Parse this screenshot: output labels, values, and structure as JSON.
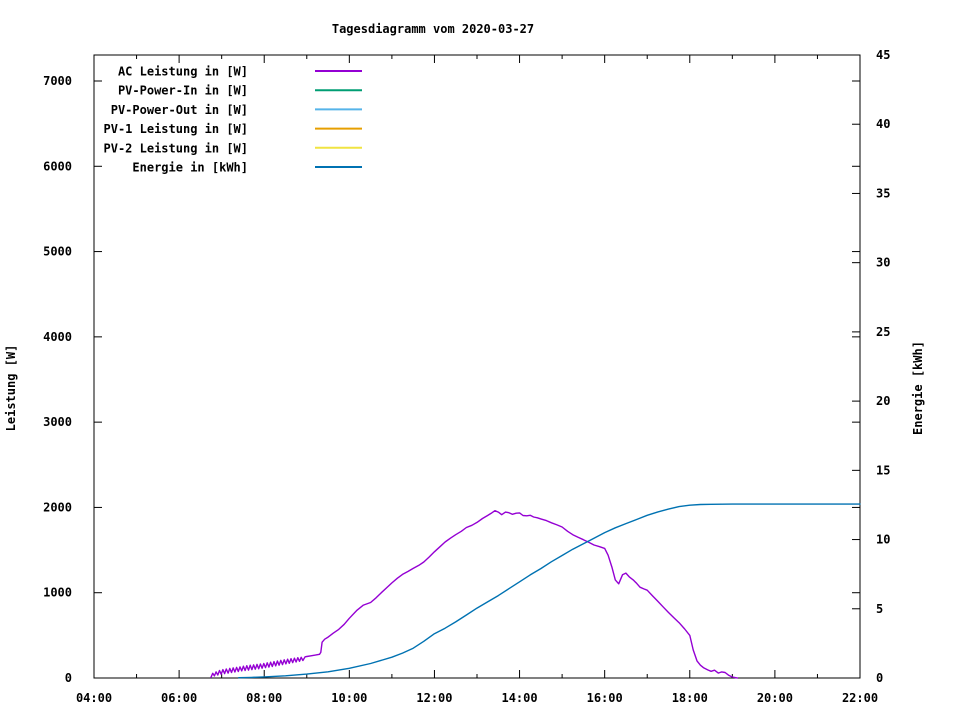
{
  "chart_data": {
    "type": "line",
    "title": "Tagesdiagramm vom 2020-03-27",
    "grid": false,
    "legend_position": "top-left-inside",
    "x_axis": {
      "range_hours": [
        4,
        22
      ],
      "major_tick_hours": [
        4,
        6,
        8,
        10,
        12,
        14,
        16,
        18,
        20,
        22
      ],
      "major_tick_labels": [
        "04:00",
        "06:00",
        "08:00",
        "10:00",
        "12:00",
        "14:00",
        "16:00",
        "18:00",
        "20:00",
        "22:00"
      ],
      "minor_tick_hours": [
        5,
        7,
        9,
        11,
        13,
        15,
        17,
        19,
        21
      ]
    },
    "y_left": {
      "label": "Leistung [W]",
      "range": [
        0,
        7300
      ],
      "tick_values": [
        0,
        1000,
        2000,
        3000,
        4000,
        5000,
        6000,
        7000
      ],
      "tick_labels": [
        "0",
        "1000",
        "2000",
        "3000",
        "4000",
        "5000",
        "6000",
        "7000"
      ]
    },
    "y_right": {
      "label": "Energie [kWh]",
      "range": [
        0,
        45
      ],
      "tick_values": [
        0,
        5,
        10,
        15,
        20,
        25,
        30,
        35,
        40,
        45
      ],
      "tick_labels": [
        "0",
        "5",
        "10",
        "15",
        "20",
        "25",
        "30",
        "35",
        "40",
        "45"
      ]
    },
    "series": [
      {
        "name": "AC Leistung in [W]",
        "color": "#9400D3",
        "axis": "left",
        "points": [
          [
            6.75,
            8
          ],
          [
            6.79,
            55
          ],
          [
            6.83,
            25
          ],
          [
            6.87,
            72
          ],
          [
            6.91,
            35
          ],
          [
            6.95,
            88
          ],
          [
            6.99,
            45
          ],
          [
            7.03,
            98
          ],
          [
            7.07,
            52
          ],
          [
            7.11,
            105
          ],
          [
            7.15,
            58
          ],
          [
            7.19,
            112
          ],
          [
            7.23,
            64
          ],
          [
            7.27,
            118
          ],
          [
            7.31,
            70
          ],
          [
            7.35,
            124
          ],
          [
            7.39,
            76
          ],
          [
            7.43,
            130
          ],
          [
            7.47,
            83
          ],
          [
            7.51,
            138
          ],
          [
            7.55,
            88
          ],
          [
            7.59,
            144
          ],
          [
            7.63,
            93
          ],
          [
            7.67,
            150
          ],
          [
            7.71,
            98
          ],
          [
            7.75,
            154
          ],
          [
            7.79,
            103
          ],
          [
            7.83,
            159
          ],
          [
            7.87,
            108
          ],
          [
            7.91,
            164
          ],
          [
            7.95,
            115
          ],
          [
            7.99,
            170
          ],
          [
            8.03,
            122
          ],
          [
            8.07,
            178
          ],
          [
            8.11,
            128
          ],
          [
            8.15,
            185
          ],
          [
            8.19,
            135
          ],
          [
            8.23,
            192
          ],
          [
            8.27,
            142
          ],
          [
            8.31,
            199
          ],
          [
            8.35,
            150
          ],
          [
            8.39,
            206
          ],
          [
            8.43,
            157
          ],
          [
            8.47,
            213
          ],
          [
            8.51,
            165
          ],
          [
            8.55,
            220
          ],
          [
            8.59,
            172
          ],
          [
            8.63,
            226
          ],
          [
            8.67,
            180
          ],
          [
            8.71,
            232
          ],
          [
            8.75,
            188
          ],
          [
            8.79,
            238
          ],
          [
            8.83,
            196
          ],
          [
            8.87,
            243
          ],
          [
            8.91,
            205
          ],
          [
            8.96,
            248
          ],
          [
            9.0,
            252
          ],
          [
            9.1,
            260
          ],
          [
            9.2,
            268
          ],
          [
            9.3,
            278
          ],
          [
            9.33,
            300
          ],
          [
            9.36,
            420
          ],
          [
            9.42,
            455
          ],
          [
            9.5,
            480
          ],
          [
            9.62,
            525
          ],
          [
            9.75,
            570
          ],
          [
            9.88,
            630
          ],
          [
            10.0,
            700
          ],
          [
            10.17,
            790
          ],
          [
            10.33,
            855
          ],
          [
            10.5,
            885
          ],
          [
            10.63,
            940
          ],
          [
            10.75,
            1000
          ],
          [
            10.88,
            1060
          ],
          [
            11.0,
            1115
          ],
          [
            11.13,
            1170
          ],
          [
            11.25,
            1215
          ],
          [
            11.38,
            1250
          ],
          [
            11.5,
            1285
          ],
          [
            11.63,
            1320
          ],
          [
            11.75,
            1360
          ],
          [
            11.88,
            1420
          ],
          [
            12.0,
            1480
          ],
          [
            12.13,
            1540
          ],
          [
            12.25,
            1595
          ],
          [
            12.38,
            1640
          ],
          [
            12.5,
            1680
          ],
          [
            12.63,
            1720
          ],
          [
            12.75,
            1765
          ],
          [
            12.88,
            1790
          ],
          [
            13.0,
            1825
          ],
          [
            13.13,
            1870
          ],
          [
            13.25,
            1905
          ],
          [
            13.33,
            1930
          ],
          [
            13.42,
            1962
          ],
          [
            13.5,
            1945
          ],
          [
            13.58,
            1915
          ],
          [
            13.67,
            1945
          ],
          [
            13.75,
            1938
          ],
          [
            13.83,
            1920
          ],
          [
            13.92,
            1932
          ],
          [
            14.0,
            1936
          ],
          [
            14.08,
            1905
          ],
          [
            14.17,
            1902
          ],
          [
            14.25,
            1908
          ],
          [
            14.33,
            1888
          ],
          [
            14.42,
            1878
          ],
          [
            14.5,
            1866
          ],
          [
            14.63,
            1845
          ],
          [
            14.75,
            1820
          ],
          [
            14.88,
            1795
          ],
          [
            15.0,
            1770
          ],
          [
            15.13,
            1720
          ],
          [
            15.25,
            1680
          ],
          [
            15.38,
            1648
          ],
          [
            15.5,
            1622
          ],
          [
            15.63,
            1590
          ],
          [
            15.75,
            1560
          ],
          [
            15.88,
            1540
          ],
          [
            16.0,
            1520
          ],
          [
            16.08,
            1440
          ],
          [
            16.17,
            1300
          ],
          [
            16.25,
            1150
          ],
          [
            16.33,
            1105
          ],
          [
            16.42,
            1210
          ],
          [
            16.5,
            1230
          ],
          [
            16.58,
            1185
          ],
          [
            16.67,
            1150
          ],
          [
            16.75,
            1110
          ],
          [
            16.83,
            1065
          ],
          [
            16.92,
            1045
          ],
          [
            17.0,
            1030
          ],
          [
            17.13,
            960
          ],
          [
            17.25,
            898
          ],
          [
            17.38,
            830
          ],
          [
            17.5,
            768
          ],
          [
            17.63,
            705
          ],
          [
            17.75,
            648
          ],
          [
            17.88,
            575
          ],
          [
            18.0,
            500
          ],
          [
            18.08,
            330
          ],
          [
            18.17,
            200
          ],
          [
            18.25,
            150
          ],
          [
            18.33,
            118
          ],
          [
            18.42,
            95
          ],
          [
            18.5,
            78
          ],
          [
            18.58,
            92
          ],
          [
            18.67,
            58
          ],
          [
            18.75,
            72
          ],
          [
            18.83,
            65
          ],
          [
            18.92,
            30
          ],
          [
            19.0,
            12
          ],
          [
            19.08,
            3
          ],
          [
            19.12,
            0
          ]
        ]
      },
      {
        "name": "PV-Power-In in [W]",
        "color": "#009E73",
        "axis": "left",
        "points": []
      },
      {
        "name": "PV-Power-Out in [W]",
        "color": "#56B4E9",
        "axis": "left",
        "points": []
      },
      {
        "name": "PV-1 Leistung in [W]",
        "color": "#E69F00",
        "axis": "left",
        "points": []
      },
      {
        "name": "PV-2 Leistung in [W]",
        "color": "#F0E442",
        "axis": "left",
        "points": []
      },
      {
        "name": "Energie in [kWh]",
        "color": "#0072B2",
        "axis": "right",
        "points": [
          [
            7.4,
            0.02
          ],
          [
            7.7,
            0.04
          ],
          [
            8.0,
            0.08
          ],
          [
            8.5,
            0.16
          ],
          [
            9.0,
            0.28
          ],
          [
            9.5,
            0.45
          ],
          [
            10.0,
            0.7
          ],
          [
            10.5,
            1.05
          ],
          [
            11.0,
            1.5
          ],
          [
            11.25,
            1.8
          ],
          [
            11.5,
            2.15
          ],
          [
            11.75,
            2.65
          ],
          [
            12.0,
            3.2
          ],
          [
            12.25,
            3.6
          ],
          [
            12.5,
            4.05
          ],
          [
            12.75,
            4.55
          ],
          [
            13.0,
            5.05
          ],
          [
            13.25,
            5.5
          ],
          [
            13.5,
            5.95
          ],
          [
            13.75,
            6.45
          ],
          [
            14.0,
            6.95
          ],
          [
            14.25,
            7.45
          ],
          [
            14.5,
            7.9
          ],
          [
            14.75,
            8.4
          ],
          [
            15.0,
            8.85
          ],
          [
            15.25,
            9.3
          ],
          [
            15.5,
            9.7
          ],
          [
            15.75,
            10.1
          ],
          [
            16.0,
            10.5
          ],
          [
            16.25,
            10.85
          ],
          [
            16.5,
            11.15
          ],
          [
            16.75,
            11.45
          ],
          [
            17.0,
            11.75
          ],
          [
            17.25,
            12.0
          ],
          [
            17.5,
            12.2
          ],
          [
            17.75,
            12.38
          ],
          [
            18.0,
            12.48
          ],
          [
            18.25,
            12.53
          ],
          [
            18.5,
            12.55
          ],
          [
            19.0,
            12.56
          ],
          [
            20.0,
            12.56
          ],
          [
            21.0,
            12.56
          ],
          [
            22.0,
            12.56
          ]
        ]
      }
    ]
  }
}
